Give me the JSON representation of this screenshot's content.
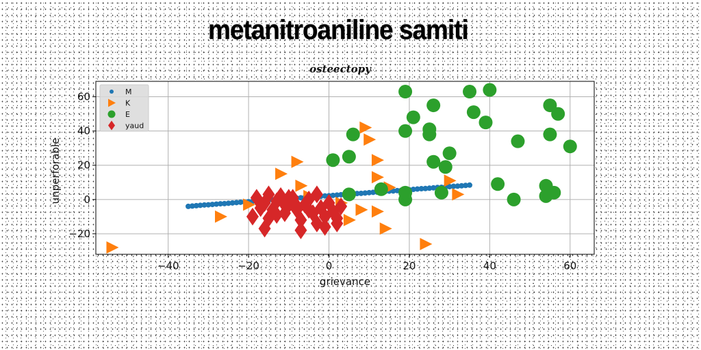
{
  "title": "metanitroaniline samiti",
  "chart_data": {
    "type": "scatter",
    "subtitle": "osteectopy",
    "xlabel": "grievance",
    "ylabel": "unperforable",
    "xlim": [
      -58,
      66
    ],
    "ylim": [
      -32,
      69
    ],
    "xticks": [
      -40,
      -20,
      0,
      20,
      40,
      60
    ],
    "yticks": [
      -20,
      0,
      20,
      40,
      60
    ],
    "grid": true,
    "legend_position": "top-left",
    "series": [
      {
        "name": "M",
        "marker": "circle-small",
        "color": "#1f77b4",
        "points": [
          [
            -35,
            -4
          ],
          [
            -34,
            -3.8
          ],
          [
            -33,
            -3.6
          ],
          [
            -32,
            -3.4
          ],
          [
            -31,
            -3.2
          ],
          [
            -30,
            -3.1
          ],
          [
            -29,
            -2.9
          ],
          [
            -28,
            -2.7
          ],
          [
            -27,
            -2.5
          ],
          [
            -26,
            -2.4
          ],
          [
            -25,
            -2.2
          ],
          [
            -24,
            -2
          ],
          [
            -23,
            -1.8
          ],
          [
            -22,
            -1.6
          ],
          [
            -21,
            -1.5
          ],
          [
            -20,
            -1.3
          ],
          [
            -19,
            -1.1
          ],
          [
            -18,
            -0.9
          ],
          [
            -17,
            -0.8
          ],
          [
            -16,
            -0.6
          ],
          [
            -15,
            -0.4
          ],
          [
            -14,
            -0.2
          ],
          [
            -13,
            0
          ],
          [
            -12,
            0.1
          ],
          [
            -11,
            0.3
          ],
          [
            -10,
            0.5
          ],
          [
            -9,
            0.7
          ],
          [
            -8,
            0.8
          ],
          [
            -7,
            1
          ],
          [
            -6,
            1.2
          ],
          [
            -5,
            1.4
          ],
          [
            -4,
            1.5
          ],
          [
            -3,
            1.7
          ],
          [
            -2,
            1.9
          ],
          [
            -1,
            2.1
          ],
          [
            0,
            2.2
          ],
          [
            1,
            2.4
          ],
          [
            2,
            2.6
          ],
          [
            3,
            2.8
          ],
          [
            4,
            2.9
          ],
          [
            5,
            3.1
          ],
          [
            6,
            3.3
          ],
          [
            7,
            3.5
          ],
          [
            8,
            3.6
          ],
          [
            9,
            3.8
          ],
          [
            10,
            4
          ],
          [
            11,
            4.2
          ],
          [
            12,
            4.3
          ],
          [
            13,
            4.5
          ],
          [
            14,
            4.7
          ],
          [
            15,
            4.9
          ],
          [
            16,
            5
          ],
          [
            17,
            5.2
          ],
          [
            18,
            5.4
          ],
          [
            19,
            5.6
          ],
          [
            20,
            5.7
          ],
          [
            21,
            5.9
          ],
          [
            22,
            6.1
          ],
          [
            23,
            6.3
          ],
          [
            24,
            6.4
          ],
          [
            25,
            6.6
          ],
          [
            26,
            6.8
          ],
          [
            27,
            7
          ],
          [
            28,
            7.1
          ],
          [
            29,
            7.3
          ],
          [
            30,
            7.5
          ],
          [
            31,
            7.7
          ],
          [
            32,
            7.8
          ],
          [
            33,
            8
          ],
          [
            34,
            8.2
          ],
          [
            35,
            8.4
          ]
        ]
      },
      {
        "name": "K",
        "marker": "triangle-right",
        "color": "#ff7f0e",
        "points": [
          [
            -54,
            -28
          ],
          [
            -27,
            -10
          ],
          [
            -20,
            -3
          ],
          [
            -12,
            15
          ],
          [
            -8,
            22
          ],
          [
            -7,
            8
          ],
          [
            -5,
            2
          ],
          [
            3,
            -2
          ],
          [
            5,
            -12
          ],
          [
            8,
            -6
          ],
          [
            9,
            42
          ],
          [
            10,
            35
          ],
          [
            12,
            23
          ],
          [
            12,
            13
          ],
          [
            12,
            -7
          ],
          [
            14,
            -17
          ],
          [
            15,
            7
          ],
          [
            30,
            11
          ],
          [
            32,
            3
          ],
          [
            24,
            -26
          ]
        ]
      },
      {
        "name": "E",
        "marker": "circle-large",
        "color": "#2ca02c",
        "points": [
          [
            19,
            63
          ],
          [
            35,
            63
          ],
          [
            40,
            64
          ],
          [
            21,
            48
          ],
          [
            26,
            55
          ],
          [
            36,
            51
          ],
          [
            39,
            45
          ],
          [
            55,
            55
          ],
          [
            57,
            50
          ],
          [
            19,
            40
          ],
          [
            25,
            41
          ],
          [
            25,
            38
          ],
          [
            47,
            34
          ],
          [
            55,
            38
          ],
          [
            60,
            31
          ],
          [
            6,
            38
          ],
          [
            5,
            25
          ],
          [
            1,
            23
          ],
          [
            30,
            27
          ],
          [
            26,
            22
          ],
          [
            29,
            19
          ],
          [
            42,
            9
          ],
          [
            54,
            8
          ],
          [
            54,
            2
          ],
          [
            56,
            4
          ],
          [
            46,
            0
          ],
          [
            19,
            0
          ],
          [
            19,
            4
          ],
          [
            28,
            4
          ],
          [
            13,
            6
          ],
          [
            5,
            3
          ]
        ]
      },
      {
        "name": "yaud",
        "marker": "diamond",
        "color": "#d62728",
        "points": [
          [
            -18,
            1
          ],
          [
            -16,
            -2
          ],
          [
            -15,
            3
          ],
          [
            -14,
            -6
          ],
          [
            -13,
            -1
          ],
          [
            -12,
            2
          ],
          [
            -11,
            -8
          ],
          [
            -10,
            -3
          ],
          [
            -9,
            1
          ],
          [
            -8,
            -6
          ],
          [
            -7,
            -12
          ],
          [
            -6,
            -3
          ],
          [
            -5,
            0
          ],
          [
            -4,
            -8
          ],
          [
            -3,
            3
          ],
          [
            -2,
            -5
          ],
          [
            -1,
            -10
          ],
          [
            0,
            -2
          ],
          [
            1,
            -7
          ],
          [
            2,
            -14
          ],
          [
            3,
            -4
          ],
          [
            -17,
            -5
          ],
          [
            -15,
            -11
          ],
          [
            -19,
            -10
          ],
          [
            -16,
            -17
          ],
          [
            -7,
            -18
          ],
          [
            -1,
            -16
          ],
          [
            -3,
            -14
          ],
          [
            -11,
            -3
          ],
          [
            -5,
            -6
          ],
          [
            -8,
            -4
          ],
          [
            2,
            -11
          ],
          [
            -13,
            -9
          ],
          [
            -10,
            1
          ]
        ]
      }
    ]
  }
}
